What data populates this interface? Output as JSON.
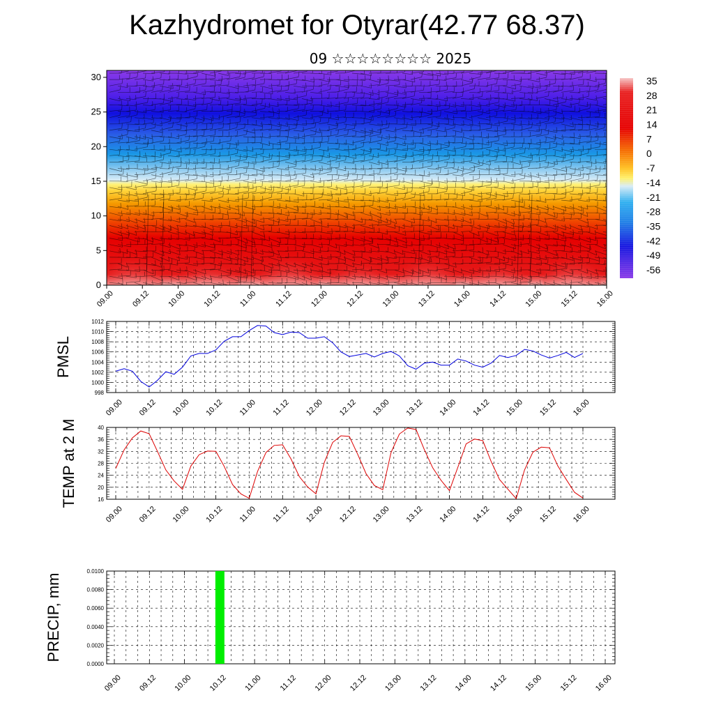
{
  "title": "Kazhydromet for Otyrar(42.77 68.37)",
  "subtitle": "09 ☆☆☆☆☆☆☆☆ 2025",
  "time_labels": [
    "09.00",
    "09.12",
    "10.00",
    "10.12",
    "11.00",
    "11.12",
    "12.00",
    "12.12",
    "13.00",
    "13.12",
    "14.00",
    "14.12",
    "15.00",
    "15.12",
    "16.00"
  ],
  "chart_data": [
    {
      "type": "heatmap",
      "description": "Vertical cross-section of temperature with wind barbs",
      "y_ticks": [
        0,
        5,
        10,
        15,
        20,
        25,
        30
      ],
      "ylim": [
        0,
        31
      ],
      "colorbar_labels": [
        "35",
        "28",
        "21",
        "14",
        "7",
        "0",
        "-7",
        "-14",
        "-21",
        "-28",
        "-35",
        "-42",
        "-49",
        "-56"
      ],
      "colors": {
        "warm": "#e80000",
        "hot": "#f4b0b0",
        "mid": "#ffd040",
        "cold": "#1a8ae8",
        "coldest": "#7020e8"
      }
    },
    {
      "type": "line",
      "ylabel": "PMSL",
      "ylim": [
        998,
        1012
      ],
      "y_ticks": [
        998,
        1000,
        1002,
        1004,
        1006,
        1008,
        1010,
        1012
      ],
      "color": "#0000dd",
      "values": [
        1002.2,
        1002.7,
        1002.2,
        1000.2,
        999.1,
        1000.4,
        1002.1,
        1001.6,
        1003.0,
        1005.2,
        1005.7,
        1005.7,
        1006.4,
        1008.1,
        1009.0,
        1009.0,
        1010.2,
        1011.2,
        1011.1,
        1009.8,
        1009.4,
        1009.9,
        1009.8,
        1008.7,
        1008.7,
        1009.0,
        1007.8,
        1006.0,
        1005.1,
        1005.4,
        1005.7,
        1005.0,
        1005.7,
        1006.1,
        1005.2,
        1003.3,
        1002.6,
        1003.8,
        1004.0,
        1003.4,
        1003.4,
        1004.6,
        1004.2,
        1003.4,
        1003.0,
        1003.8,
        1005.3,
        1004.9,
        1005.3,
        1006.5,
        1006.2,
        1005.4,
        1004.8,
        1005.3,
        1005.9,
        1004.9,
        1005.7
      ]
    },
    {
      "type": "line",
      "ylabel": "TEMP at 2 M",
      "ylim": [
        16,
        40
      ],
      "y_ticks": [
        16,
        20,
        24,
        28,
        32,
        36,
        40
      ],
      "color": "#dd0000",
      "values": [
        26.3,
        32.5,
        36.5,
        38.8,
        37.9,
        32.0,
        25.8,
        22.1,
        19.3,
        27.1,
        30.9,
        32.1,
        32.0,
        27.0,
        20.9,
        17.8,
        16.3,
        25.3,
        31.6,
        34.0,
        34.2,
        29.5,
        23.6,
        20.1,
        17.8,
        28.3,
        35.0,
        37.2,
        37.0,
        31.0,
        24.6,
        20.6,
        19.2,
        31.6,
        37.8,
        39.8,
        39.3,
        32.5,
        26.5,
        22.3,
        18.9,
        26.6,
        34.5,
        36.1,
        35.6,
        28.6,
        22.6,
        19.4,
        16.2,
        25.8,
        31.7,
        33.4,
        33.2,
        27.1,
        22.6,
        18.3,
        16.4
      ]
    },
    {
      "type": "bar",
      "ylabel": "PRECIP, mm",
      "ylim": [
        0,
        0.01
      ],
      "y_ticks": [
        "0.0000",
        "0.0020",
        "0.0040",
        "0.0060",
        "0.0080",
        "0.0100"
      ],
      "color": "#00ee00",
      "bars": [
        {
          "time": "10.12",
          "value": 0.01
        }
      ]
    }
  ]
}
